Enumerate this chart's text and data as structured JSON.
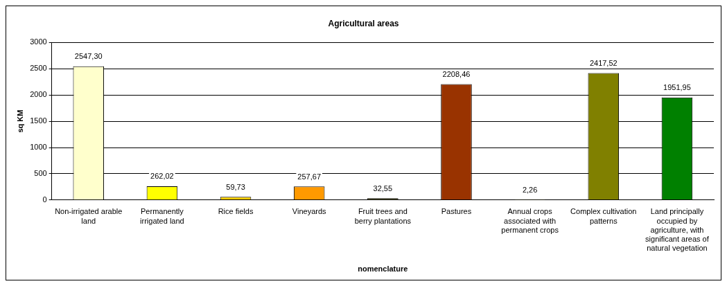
{
  "chart_data": {
    "type": "bar",
    "title": "Agricultural areas",
    "xlabel": "nomenclature",
    "ylabel": "sq KM",
    "categories": [
      "Non-irrigated arable land",
      "Permanently irrigated land",
      "Rice fields",
      "Vineyards",
      "Fruit trees and berry plantations",
      "Pastures",
      "Annual crops associated with permanent crops",
      "Complex cultivation patterns",
      "Land principally occupied by agriculture, with significant areas of natural vegetation"
    ],
    "values": [
      2547.3,
      262.02,
      59.73,
      257.67,
      32.55,
      2208.46,
      2.26,
      2417.52,
      1951.95
    ],
    "value_labels": [
      "2547,30",
      "262,02",
      "59,73",
      "257,67",
      "32,55",
      "2208,46",
      "2,26",
      "2417,52",
      "1951,95"
    ],
    "colors": [
      "#ffffcc",
      "#ffff00",
      "#ffcc00",
      "#ff9900",
      "#333300",
      "#993300",
      "#999933",
      "#808000",
      "#008000"
    ],
    "ylim": [
      0,
      3000
    ],
    "yticks": [
      0,
      500,
      1000,
      1500,
      2000,
      2500,
      3000
    ],
    "grid": "y",
    "legend": false
  }
}
